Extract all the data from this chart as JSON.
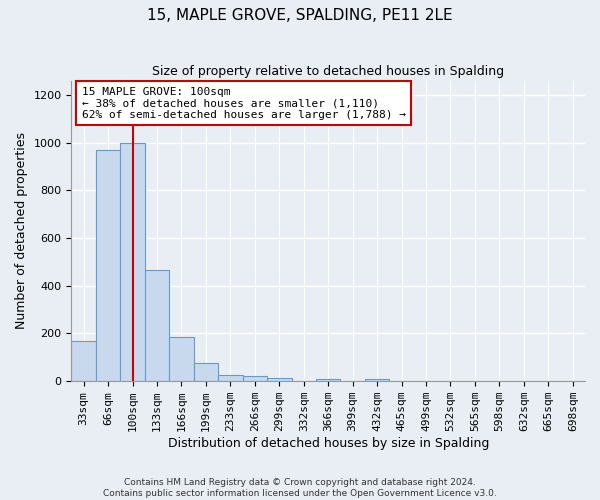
{
  "title": "15, MAPLE GROVE, SPALDING, PE11 2LE",
  "subtitle": "Size of property relative to detached houses in Spalding",
  "xlabel": "Distribution of detached houses by size in Spalding",
  "ylabel": "Number of detached properties",
  "footnote1": "Contains HM Land Registry data © Crown copyright and database right 2024.",
  "footnote2": "Contains public sector information licensed under the Open Government Licence v3.0.",
  "bin_labels": [
    "33sqm",
    "66sqm",
    "100sqm",
    "133sqm",
    "166sqm",
    "199sqm",
    "233sqm",
    "266sqm",
    "299sqm",
    "332sqm",
    "366sqm",
    "399sqm",
    "432sqm",
    "465sqm",
    "499sqm",
    "532sqm",
    "565sqm",
    "598sqm",
    "632sqm",
    "665sqm",
    "698sqm"
  ],
  "bar_heights": [
    170,
    970,
    1000,
    465,
    185,
    75,
    25,
    20,
    15,
    0,
    10,
    0,
    10,
    0,
    0,
    0,
    0,
    0,
    0,
    0,
    0
  ],
  "bar_color": "#c8d9ee",
  "bar_edge_color": "#6699cc",
  "vline_x_index": 2,
  "vline_color": "#cc0000",
  "annotation_title": "15 MAPLE GROVE: 100sqm",
  "annotation_line1": "← 38% of detached houses are smaller (1,110)",
  "annotation_line2": "62% of semi-detached houses are larger (1,788) →",
  "annotation_box_facecolor": "#ffffff",
  "annotation_box_edgecolor": "#cc0000",
  "ylim": [
    0,
    1260
  ],
  "yticks": [
    0,
    200,
    400,
    600,
    800,
    1000,
    1200
  ],
  "background_color": "#e8eef4",
  "plot_bg_color": "#e8eef4",
  "grid_color": "#ffffff",
  "title_fontsize": 11,
  "subtitle_fontsize": 9,
  "axis_label_fontsize": 9,
  "tick_fontsize": 8,
  "annotation_fontsize": 8
}
